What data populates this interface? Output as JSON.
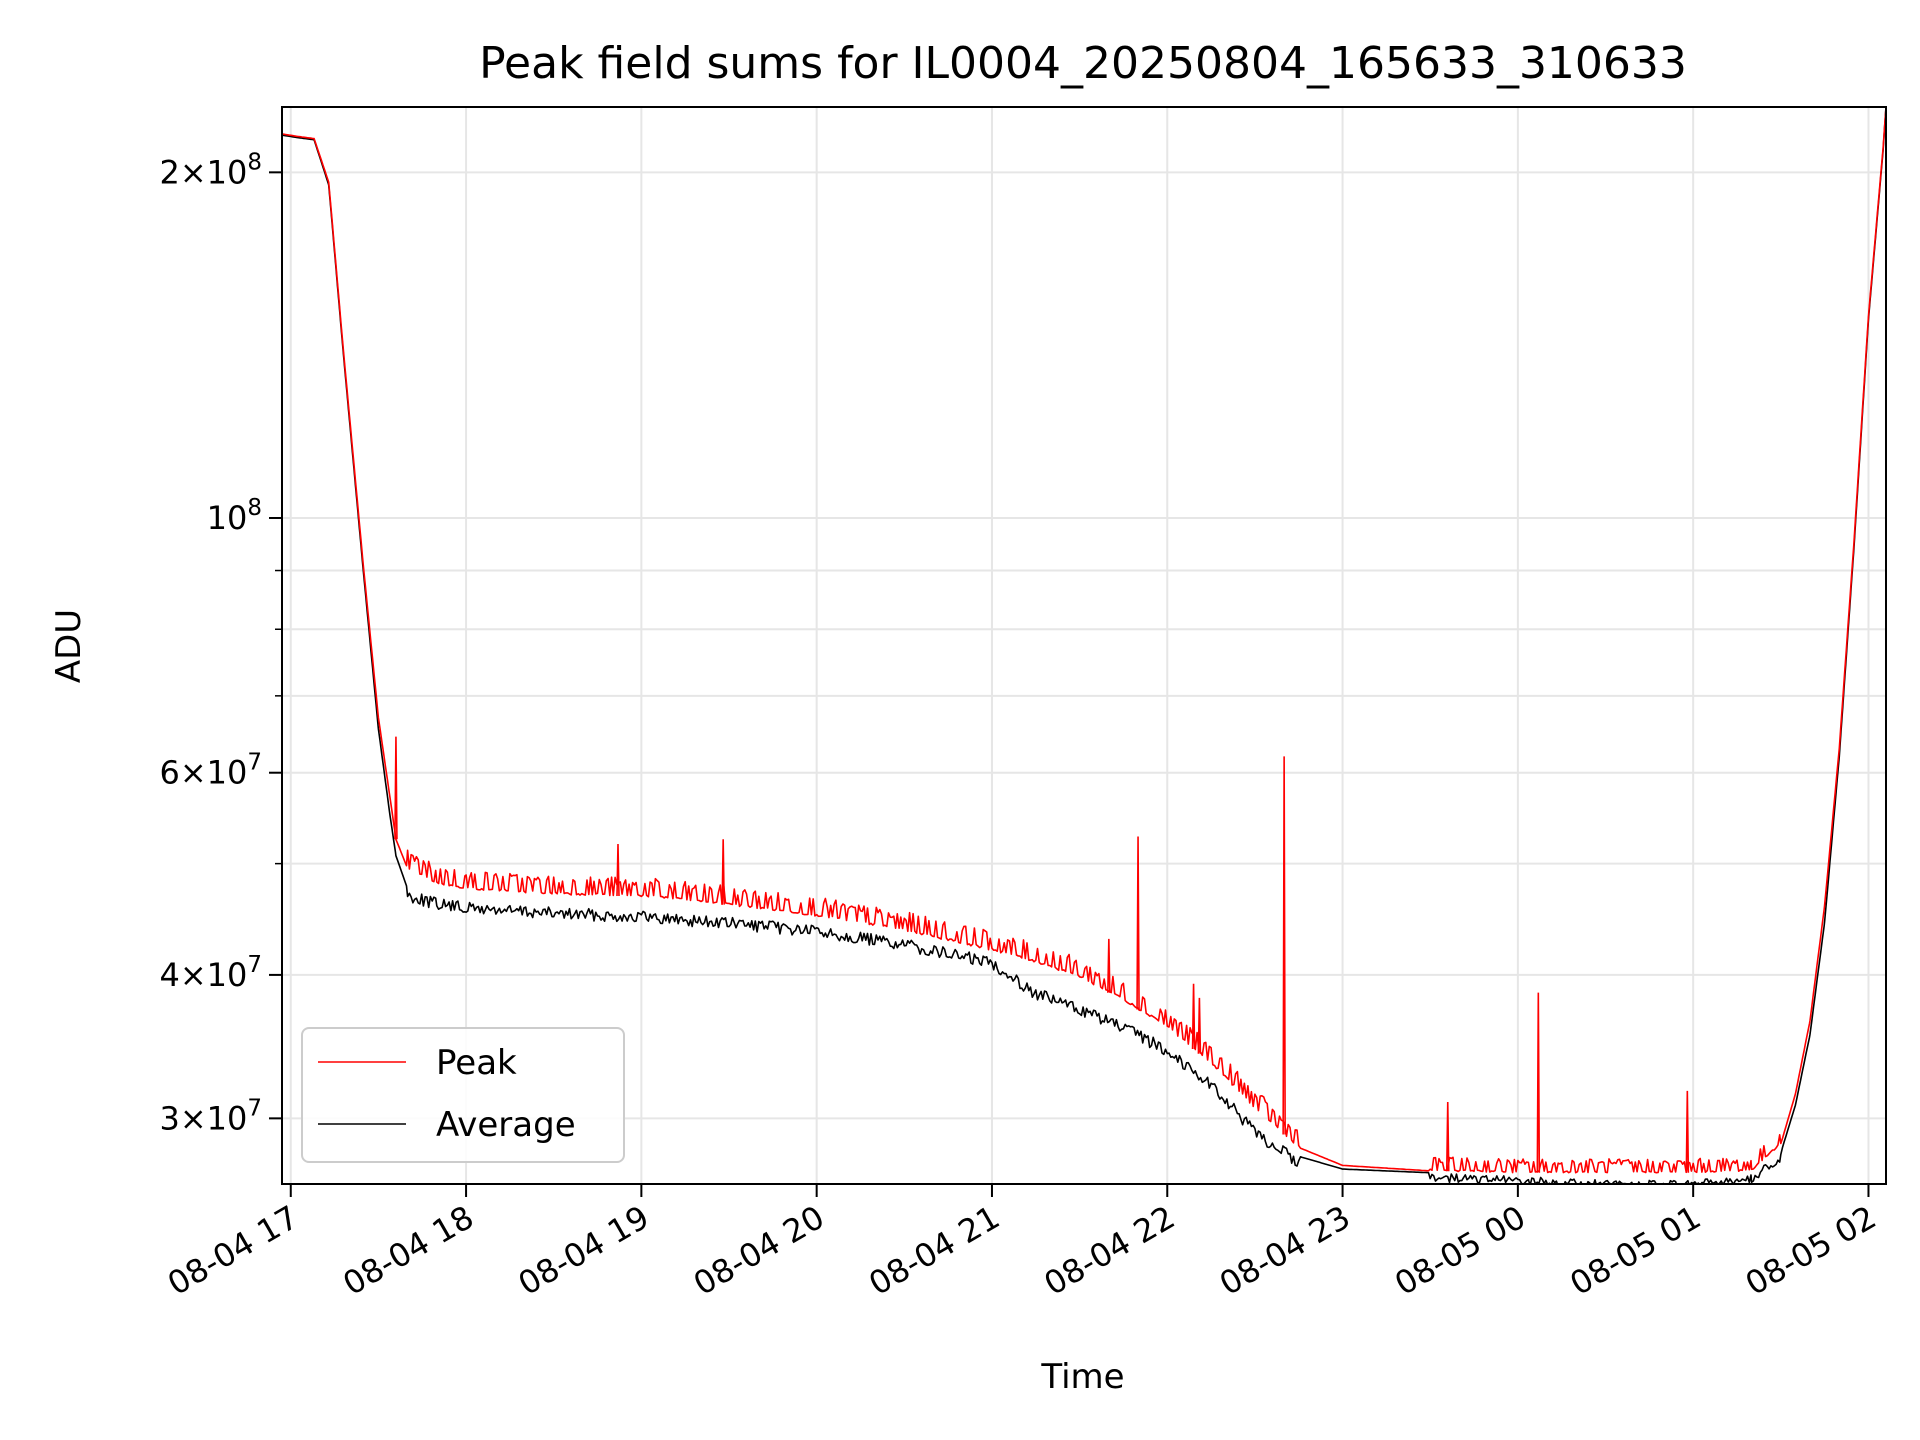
{
  "chart_data": {
    "type": "line",
    "title": "Peak field sums for IL0004_20250804_165633_310633",
    "xlabel": "Time",
    "ylabel": "ADU",
    "yscale": "log",
    "ylim": [
      26300000,
      228000000
    ],
    "xlim": [
      "2025-08-04 16:57",
      "2025-08-05 02:06"
    ],
    "grid": true,
    "legend_position": "lower-left",
    "x_ticks": [
      {
        "t": "2025-08-04 17:00",
        "label": "08-04 17"
      },
      {
        "t": "2025-08-04 18:00",
        "label": "08-04 18"
      },
      {
        "t": "2025-08-04 19:00",
        "label": "08-04 19"
      },
      {
        "t": "2025-08-04 20:00",
        "label": "08-04 20"
      },
      {
        "t": "2025-08-04 21:00",
        "label": "08-04 21"
      },
      {
        "t": "2025-08-04 22:00",
        "label": "08-04 22"
      },
      {
        "t": "2025-08-04 23:00",
        "label": "08-04 23"
      },
      {
        "t": "2025-08-05 00:00",
        "label": "08-05 00"
      },
      {
        "t": "2025-08-05 01:00",
        "label": "08-05 01"
      },
      {
        "t": "2025-08-05 02:00",
        "label": "08-05 02"
      }
    ],
    "y_ticks": [
      {
        "v": 30000000,
        "mant": "3",
        "exp": "7"
      },
      {
        "v": 40000000,
        "mant": "4",
        "exp": "7"
      },
      {
        "v": 60000000,
        "mant": "6",
        "exp": "7"
      },
      {
        "v": 100000000,
        "mant": "",
        "exp": "8"
      },
      {
        "v": 200000000,
        "mant": "2",
        "exp": "8"
      }
    ],
    "y_minor_ticks": [
      50000000,
      70000000,
      80000000,
      90000000
    ],
    "series": [
      {
        "name": "Peak",
        "color": "#ff0000",
        "points": [
          [
            "2025-08-04 16:57",
            216000000
          ],
          [
            "2025-08-04 17:02",
            215000000
          ],
          [
            "2025-08-04 17:08",
            214000000
          ],
          [
            "2025-08-04 17:13",
            196000000
          ],
          [
            "2025-08-04 17:18",
            140000000
          ],
          [
            "2025-08-04 17:25",
            90000000
          ],
          [
            "2025-08-04 17:30",
            67000000
          ],
          [
            "2025-08-04 17:34",
            57000000
          ],
          [
            "2025-08-04 17:36",
            52500000
          ],
          [
            "2025-08-04 17:40",
            49500000
          ],
          [
            "2025-08-04 17:50",
            48000000
          ],
          [
            "2025-08-04 18:00",
            47500000
          ],
          [
            "2025-08-04 18:30",
            47000000
          ],
          [
            "2025-08-04 19:00",
            46800000
          ],
          [
            "2025-08-04 19:30",
            46000000
          ],
          [
            "2025-08-04 20:00",
            45000000
          ],
          [
            "2025-08-04 20:30",
            43700000
          ],
          [
            "2025-08-04 21:00",
            42000000
          ],
          [
            "2025-08-04 21:15",
            41000000
          ],
          [
            "2025-08-04 21:30",
            39800000
          ],
          [
            "2025-08-04 21:45",
            38000000
          ],
          [
            "2025-08-04 22:00",
            36000000
          ],
          [
            "2025-08-04 22:15",
            33500000
          ],
          [
            "2025-08-04 22:30",
            30600000
          ],
          [
            "2025-08-04 22:45",
            28300000
          ],
          [
            "2025-08-04 23:00",
            27300000
          ],
          [
            "2025-08-04 23:30",
            27000000
          ],
          [
            "2025-08-05 00:00",
            26900000
          ],
          [
            "2025-08-05 00:30",
            26900000
          ],
          [
            "2025-08-05 01:00",
            26900000
          ],
          [
            "2025-08-05 01:20",
            27000000
          ],
          [
            "2025-08-05 01:30",
            28500000
          ],
          [
            "2025-08-05 01:35",
            31500000
          ],
          [
            "2025-08-05 01:40",
            36500000
          ],
          [
            "2025-08-05 01:45",
            46000000
          ],
          [
            "2025-08-05 01:50",
            63000000
          ],
          [
            "2025-08-05 01:55",
            95000000
          ],
          [
            "2025-08-05 02:00",
            150000000
          ],
          [
            "2025-08-05 02:05",
            210000000
          ],
          [
            "2025-08-05 02:06",
            228000000
          ]
        ]
      },
      {
        "name": "Average",
        "color": "#000000",
        "points": [
          [
            "2025-08-04 16:57",
            215500000
          ],
          [
            "2025-08-04 17:02",
            214500000
          ],
          [
            "2025-08-04 17:08",
            213500000
          ],
          [
            "2025-08-04 17:13",
            195000000
          ],
          [
            "2025-08-04 17:18",
            139000000
          ],
          [
            "2025-08-04 17:25",
            89000000
          ],
          [
            "2025-08-04 17:30",
            65500000
          ],
          [
            "2025-08-04 17:34",
            55000000
          ],
          [
            "2025-08-04 17:36",
            50800000
          ],
          [
            "2025-08-04 17:40",
            47500000
          ],
          [
            "2025-08-04 17:50",
            46700000
          ],
          [
            "2025-08-04 18:00",
            46300000
          ],
          [
            "2025-08-04 18:30",
            45800000
          ],
          [
            "2025-08-04 19:00",
            45500000
          ],
          [
            "2025-08-04 19:30",
            44900000
          ],
          [
            "2025-08-04 20:00",
            44200000
          ],
          [
            "2025-08-04 20:30",
            43000000
          ],
          [
            "2025-08-04 21:00",
            41500000
          ],
          [
            "2025-08-04 21:15",
            39000000
          ],
          [
            "2025-08-04 21:30",
            37800000
          ],
          [
            "2025-08-04 21:45",
            36400000
          ],
          [
            "2025-08-04 22:00",
            34800000
          ],
          [
            "2025-08-04 22:15",
            32500000
          ],
          [
            "2025-08-04 22:30",
            29500000
          ],
          [
            "2025-08-04 22:45",
            27800000
          ],
          [
            "2025-08-04 23:00",
            27100000
          ],
          [
            "2025-08-04 23:30",
            26900000
          ],
          [
            "2025-08-05 00:00",
            26700000
          ],
          [
            "2025-08-05 00:30",
            26500000
          ],
          [
            "2025-08-05 01:00",
            26500000
          ],
          [
            "2025-08-05 01:20",
            26800000
          ],
          [
            "2025-08-05 01:30",
            28000000
          ],
          [
            "2025-08-05 01:35",
            30800000
          ],
          [
            "2025-08-05 01:40",
            35500000
          ],
          [
            "2025-08-05 01:45",
            44500000
          ],
          [
            "2025-08-05 01:50",
            62000000
          ],
          [
            "2025-08-05 01:55",
            94000000
          ],
          [
            "2025-08-05 02:00",
            149000000
          ],
          [
            "2025-08-05 02:05",
            209000000
          ],
          [
            "2025-08-05 02:06",
            228000000
          ]
        ]
      }
    ],
    "spikes": [
      {
        "series": "Peak",
        "t": "2025-08-04 17:36",
        "v": 64500000
      },
      {
        "series": "Peak",
        "t": "2025-08-04 18:52",
        "v": 52000000
      },
      {
        "series": "Peak",
        "t": "2025-08-04 19:28",
        "v": 52500000
      },
      {
        "series": "Peak",
        "t": "2025-08-04 21:40",
        "v": 43000000
      },
      {
        "series": "Peak",
        "t": "2025-08-04 21:50",
        "v": 52800000
      },
      {
        "series": "Peak",
        "t": "2025-08-04 22:09",
        "v": 39300000
      },
      {
        "series": "Peak",
        "t": "2025-08-04 22:11",
        "v": 38200000
      },
      {
        "series": "Peak",
        "t": "2025-08-04 22:40",
        "v": 62000000
      },
      {
        "series": "Peak",
        "t": "2025-08-04 23:36",
        "v": 31000000
      },
      {
        "series": "Peak",
        "t": "2025-08-05 00:07",
        "v": 38600000
      },
      {
        "series": "Peak",
        "t": "2025-08-05 00:58",
        "v": 31700000
      }
    ]
  }
}
